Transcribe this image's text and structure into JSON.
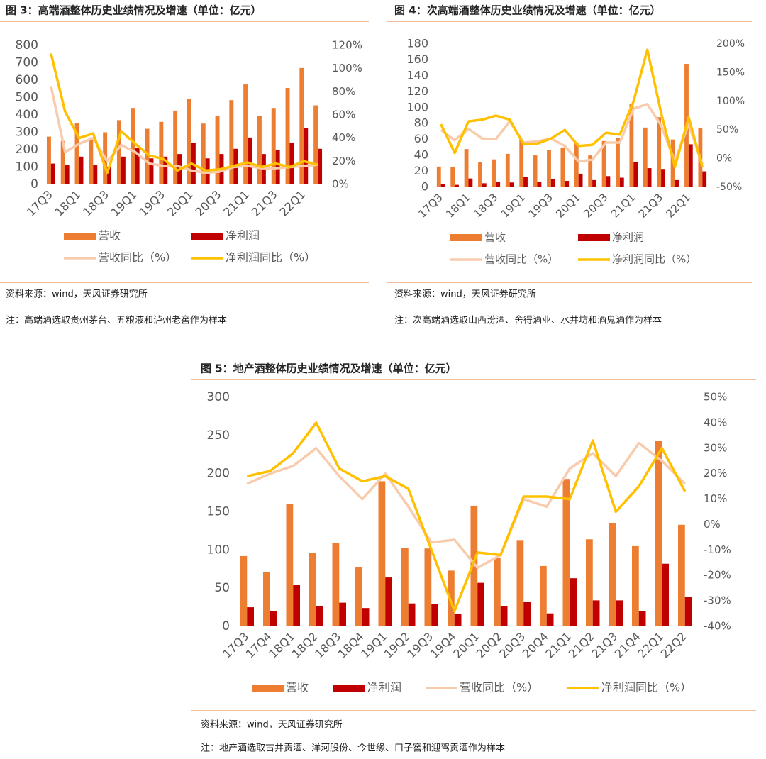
{
  "chart_data": [
    {
      "type": "combo",
      "title": "图 3：高端酒整体历史业绩情况及增速（单位：亿元）",
      "categories": [
        "17Q3",
        null,
        "18Q1",
        null,
        "18Q3",
        null,
        "19Q1",
        null,
        "19Q3",
        null,
        "20Q1",
        null,
        "20Q3",
        null,
        "21Q1",
        null,
        "21Q3",
        null,
        "22Q1",
        null
      ],
      "series": [
        {
          "name": "营收",
          "color": "#ed7d31",
          "values": [
            275,
            250,
            355,
            270,
            300,
            370,
            440,
            320,
            360,
            425,
            490,
            350,
            395,
            485,
            575,
            395,
            440,
            555,
            670,
            455
          ]
        },
        {
          "name": "净利润",
          "color": "#c00000",
          "values": [
            120,
            110,
            160,
            110,
            100,
            160,
            210,
            150,
            160,
            175,
            240,
            150,
            175,
            205,
            270,
            175,
            200,
            240,
            325,
            205
          ]
        },
        {
          "name": "营收同比（%）",
          "color": "#f8cbad",
          "axis": "y2",
          "values": [
            85,
            28,
            35,
            40,
            20,
            34,
            28,
            18,
            16,
            16,
            12,
            10,
            11,
            15,
            16,
            14,
            14,
            15,
            16,
            17
          ]
        },
        {
          "name": "净利润同比（%）",
          "color": "#ffc000",
          "axis": "y2",
          "values": [
            113,
            63,
            40,
            44,
            10,
            46,
            35,
            25,
            22,
            12,
            18,
            12,
            13,
            16,
            19,
            15,
            18,
            15,
            20,
            17
          ]
        }
      ],
      "ylim": [
        0,
        800
      ],
      "yticks": [
        0,
        100,
        200,
        300,
        400,
        500,
        600,
        700,
        800
      ],
      "y2lim": [
        0,
        120
      ],
      "y2ticks": [
        {
          "value": 0,
          "label": "0%"
        },
        {
          "value": 20,
          "label": "20%"
        },
        {
          "value": 40,
          "label": "40%"
        },
        {
          "value": 60,
          "label": "60%"
        },
        {
          "value": 80,
          "label": "80%"
        },
        {
          "value": 100,
          "label": "100%"
        },
        {
          "value": 120,
          "label": "120%"
        }
      ],
      "source": "资料来源：wind，天风证券研究所",
      "note": "注：高端酒选取贵州茅台、五粮液和泸州老窖作为样本"
    },
    {
      "type": "combo",
      "title": "图 4：次高端酒整体历史业绩情况及增速（单位：亿元）",
      "categories": [
        "17Q3",
        null,
        "18Q1",
        null,
        "18Q3",
        null,
        "19Q1",
        null,
        "19Q3",
        null,
        "20Q1",
        null,
        "20Q3",
        null,
        "21Q1",
        null,
        "21Q3",
        null,
        "22Q1",
        null
      ],
      "series": [
        {
          "name": "营收",
          "color": "#ed7d31",
          "values": [
            26,
            25,
            48,
            32,
            35,
            42,
            60,
            40,
            47,
            50,
            56,
            40,
            58,
            62,
            105,
            75,
            88,
            60,
            155,
            74
          ]
        },
        {
          "name": "净利润",
          "color": "#c00000",
          "values": [
            4,
            3,
            11,
            5,
            7,
            6,
            13,
            7,
            10,
            8,
            17,
            9,
            14,
            12,
            32,
            24,
            23,
            9,
            54,
            20
          ]
        },
        {
          "name": "营收同比（%）",
          "color": "#f8cbad",
          "axis": "y2",
          "values": [
            50,
            32,
            52,
            35,
            34,
            65,
            28,
            30,
            35,
            22,
            -5,
            -2,
            28,
            28,
            87,
            95,
            58,
            -5,
            60,
            -10
          ]
        },
        {
          "name": "净利润同比（%）",
          "color": "#ffc000",
          "axis": "y2",
          "values": [
            60,
            10,
            65,
            68,
            75,
            68,
            25,
            26,
            35,
            50,
            22,
            24,
            45,
            42,
            100,
            190,
            80,
            -15,
            72,
            -15
          ]
        }
      ],
      "ylim": [
        0,
        180
      ],
      "yticks": [
        0,
        20,
        40,
        60,
        80,
        100,
        120,
        140,
        160,
        180
      ],
      "y2lim": [
        -50,
        200
      ],
      "y2ticks": [
        {
          "value": -50,
          "label": "-50%"
        },
        {
          "value": 0,
          "label": "0%"
        },
        {
          "value": 50,
          "label": "50%"
        },
        {
          "value": 100,
          "label": "100%"
        },
        {
          "value": 150,
          "label": "150%"
        },
        {
          "value": 200,
          "label": "200%"
        }
      ],
      "source": "资料来源：wind，天风证券研究所",
      "note": "注：次高端酒选取山西汾酒、舍得酒业、水井坊和酒鬼酒作为样本"
    },
    {
      "type": "combo",
      "title": "图 5：地产酒整体历史业绩情况及增速（单位：亿元）",
      "categories": [
        "17Q3",
        "17Q4",
        "18Q1",
        "18Q2",
        "18Q3",
        "18Q4",
        "19Q1",
        "19Q2",
        "19Q3",
        "19Q4",
        "20Q1",
        "20Q2",
        "20Q3",
        "20Q4",
        "21Q1",
        "21Q2",
        "21Q3",
        "21Q4",
        "22Q1",
        "22Q2"
      ],
      "series": [
        {
          "name": "营收",
          "color": "#ed7d31",
          "values": [
            92,
            71,
            160,
            96,
            109,
            78,
            190,
            103,
            102,
            73,
            158,
            90,
            113,
            79,
            193,
            114,
            135,
            105,
            243,
            133
          ]
        },
        {
          "name": "净利润",
          "color": "#c00000",
          "values": [
            25,
            20,
            54,
            26,
            31,
            24,
            64,
            30,
            29,
            16,
            57,
            26,
            32,
            17,
            63,
            34,
            34,
            20,
            82,
            39
          ]
        },
        {
          "name": "营收同比（%）",
          "color": "#f8cbad",
          "axis": "y2",
          "values": [
            16,
            20,
            23,
            30,
            19,
            10,
            20,
            7,
            -7,
            -6,
            -17,
            -12,
            10,
            7,
            22,
            28,
            19,
            32,
            25,
            16
          ]
        },
        {
          "name": "净利润同比（%）",
          "color": "#ffc000",
          "axis": "y2",
          "values": [
            19,
            21,
            28,
            40,
            22,
            17,
            19,
            14,
            -10,
            -34,
            -11,
            -12,
            11,
            11,
            10,
            33,
            5,
            15,
            30,
            13
          ]
        }
      ],
      "ylim": [
        0,
        300
      ],
      "yticks": [
        0,
        50,
        100,
        150,
        200,
        250,
        300
      ],
      "y2lim": [
        -40,
        50
      ],
      "y2ticks": [
        {
          "value": -40,
          "label": "-40%"
        },
        {
          "value": -30,
          "label": "-30%"
        },
        {
          "value": -20,
          "label": "-20%"
        },
        {
          "value": -10,
          "label": "-10%"
        },
        {
          "value": 0,
          "label": "0%"
        },
        {
          "value": 10,
          "label": "10%"
        },
        {
          "value": 20,
          "label": "20%"
        },
        {
          "value": 30,
          "label": "30%"
        },
        {
          "value": 40,
          "label": "40%"
        },
        {
          "value": 50,
          "label": "50%"
        }
      ],
      "source": "资料来源：wind，天风证券研究所",
      "note": "注：地产酒选取古井贡酒、洋河股份、今世缘、口子窖和迎驾贡酒作为样本"
    }
  ]
}
